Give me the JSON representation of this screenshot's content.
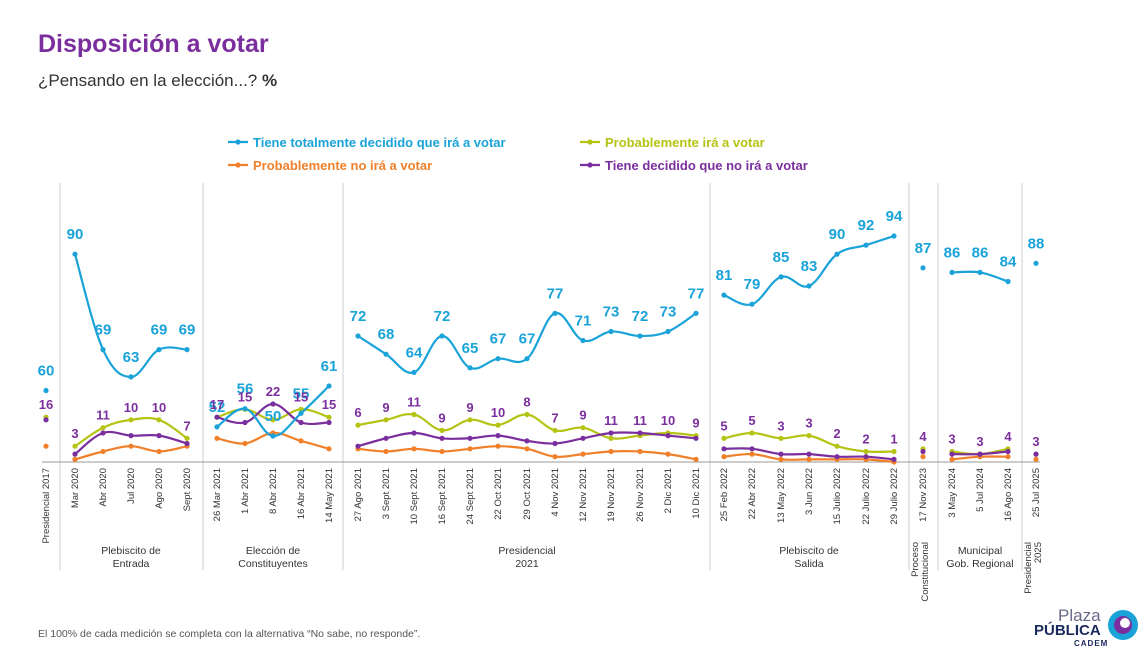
{
  "title": "Disposición a votar",
  "subtitle": "¿Pensando en la elección...?",
  "subtitle_unit": "%",
  "footnote": "El 100% de cada medición se completa con la alternativa “No sabe, no responde”.",
  "logo": {
    "top": "Plaza",
    "main": "PÚBLICA",
    "sub": "CADEM"
  },
  "colors": {
    "title": "#7b2f9e",
    "blue": "#1aa3d9",
    "olive": "#b5c313",
    "orange": "#f0802a",
    "purple": "#7b2f9e"
  },
  "chart_data": {
    "type": "line",
    "legend_position": "top",
    "categories": [
      "Presidencial 2017",
      "Mar 2020",
      "Abr 2020",
      "Jul 2020",
      "Ago 2020",
      "Sept 2020",
      "26 Mar 2021",
      "1 Abr 2021",
      "8 Abr 2021",
      "16 Abr 2021",
      "14 May 2021",
      "27 Ago 2021",
      "3 Sept 2021",
      "10 Sept 2021",
      "16 Sept 2021",
      "24 Sept 2021",
      "22 Oct 2021",
      "29 Oct 2021",
      "4 Nov 2021",
      "12 Nov 2021",
      "19 Nov 2021",
      "26 Nov 2021",
      "2 Dic 2021",
      "10 Dic 2021",
      "25 Feb 2022",
      "22 Abr 2022",
      "13 May 2022",
      "3 Jun 2022",
      "15 Julio 2022",
      "22 Julio 2022",
      "29 Julio 2022",
      "17 Nov 2023",
      "3 May 2024",
      "5 Jul 2024",
      "16 Ago 2024",
      "25 Jul 2025"
    ],
    "groups": [
      {
        "label": "",
        "start": 0,
        "end": 0
      },
      {
        "label": "Plebiscito de Entrada",
        "start": 1,
        "end": 5
      },
      {
        "label": "Elección de Constituyentes",
        "start": 6,
        "end": 10
      },
      {
        "label": "Presidencial 2021",
        "start": 11,
        "end": 23
      },
      {
        "label": "Plebiscito de Salida",
        "start": 24,
        "end": 30
      },
      {
        "label": "Proceso Constitucional",
        "start": 31,
        "end": 31,
        "vertical": true
      },
      {
        "label": "Municipal Gob. Regional",
        "start": 32,
        "end": 34
      },
      {
        "label": "Presidencial 2025",
        "start": 35,
        "end": 35,
        "vertical": true
      }
    ],
    "series": [
      {
        "name": "Tiene totalmente decidido que irá a votar",
        "color": "#1aa3d9",
        "labeled": true,
        "values": [
          60,
          90,
          69,
          63,
          69,
          69,
          52,
          56,
          50,
          55,
          61,
          72,
          68,
          64,
          72,
          65,
          67,
          67,
          77,
          71,
          73,
          72,
          73,
          77,
          81,
          79,
          85,
          83,
          90,
          92,
          94,
          87,
          86,
          86,
          84,
          88
        ]
      },
      {
        "name": "Probablemente irá a votar",
        "color": "#b5c313",
        "labeled": false,
        "values": [
          null,
          null,
          null,
          null,
          null,
          null,
          null,
          null,
          null,
          null,
          null,
          null,
          null,
          null,
          null,
          null,
          null,
          null,
          null,
          null,
          null,
          null,
          null,
          null,
          null,
          null,
          null,
          null,
          null,
          null,
          null,
          null,
          null,
          null,
          null,
          null
        ]
      },
      {
        "name": "Probablemente no irá a votar",
        "color": "#f0802a",
        "labeled": false,
        "values": [
          null,
          null,
          null,
          null,
          null,
          null,
          null,
          null,
          null,
          null,
          null,
          null,
          null,
          null,
          null,
          null,
          null,
          null,
          null,
          null,
          null,
          null,
          null,
          null,
          null,
          null,
          null,
          null,
          null,
          null,
          null,
          null,
          null,
          null,
          null,
          null
        ]
      },
      {
        "name": "Tiene decidido que no irá a votar",
        "color": "#7b2f9e",
        "labeled": true,
        "values": [
          16,
          3,
          11,
          10,
          10,
          7,
          17,
          15,
          22,
          15,
          15,
          6,
          9,
          11,
          9,
          9,
          10,
          8,
          7,
          9,
          11,
          11,
          10,
          9,
          5,
          5,
          3,
          3,
          2,
          2,
          1,
          4,
          3,
          3,
          4,
          3
        ]
      }
    ],
    "est_series": {
      "Probablemente irá a votar": [
        17,
        6,
        13,
        16,
        16,
        9,
        17,
        20,
        16,
        20,
        17,
        14,
        16,
        18,
        12,
        16,
        14,
        18,
        12,
        13,
        9,
        10,
        11,
        10,
        9,
        11,
        9,
        10,
        6,
        4,
        4,
        5,
        4,
        3,
        5,
        3
      ],
      "Probablemente no irá a votar": [
        6,
        1,
        4,
        6,
        4,
        6,
        9,
        7,
        11,
        8,
        5,
        5,
        4,
        5,
        4,
        5,
        6,
        5,
        2,
        3,
        4,
        4,
        3,
        1,
        2,
        3,
        1,
        1,
        1,
        1,
        0,
        2,
        1,
        2,
        2,
        1
      ]
    },
    "ylim": [
      0,
      100
    ]
  }
}
